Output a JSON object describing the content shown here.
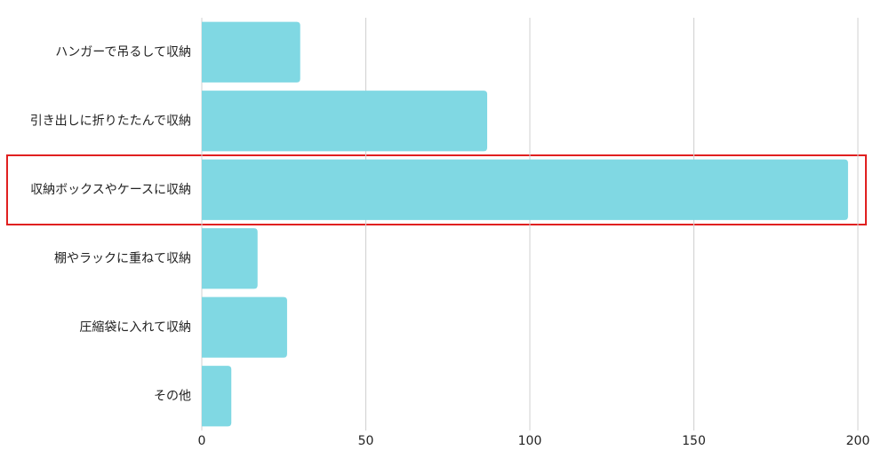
{
  "chart_data": {
    "type": "bar",
    "orientation": "horizontal",
    "categories": [
      "ハンガーで吊るして収納",
      "引き出しに折りたたんで収納",
      "収納ボックスやケースに収納",
      "棚やラックに重ねて収納",
      "圧縮袋に入れて収納",
      "その他"
    ],
    "values": [
      30,
      87,
      197,
      17,
      26,
      9
    ],
    "color": "#80d8e3",
    "xlim": [
      0,
      200
    ],
    "xticks": [
      0,
      50,
      100,
      150,
      200
    ],
    "grid": true
  }
}
